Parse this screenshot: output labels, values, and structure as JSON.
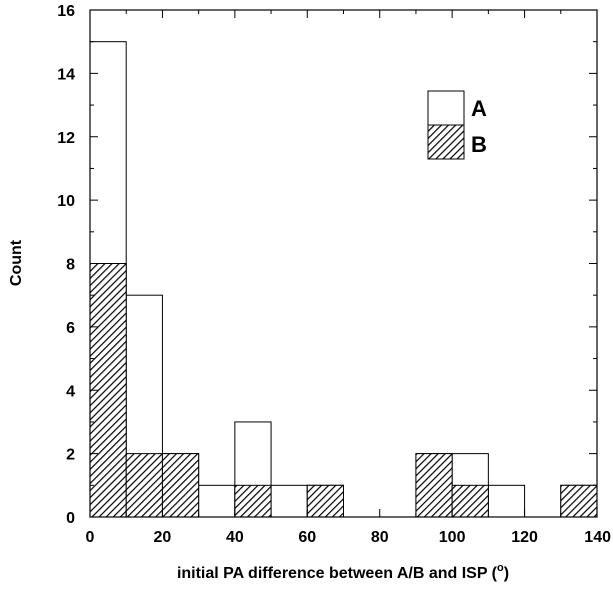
{
  "chart_data": {
    "type": "bar",
    "subtype": "histogram",
    "xlabel": "initial PA difference between A/B and ISP (",
    "xlabel_unit": "o",
    "xlabel_close": ")",
    "ylabel": "Count",
    "xlim": [
      0,
      140
    ],
    "ylim": [
      0,
      16
    ],
    "x_ticks": [
      "0",
      "20",
      "40",
      "60",
      "80",
      "100",
      "120",
      "140"
    ],
    "y_ticks": [
      "0",
      "2",
      "4",
      "6",
      "8",
      "10",
      "12",
      "14",
      "16"
    ],
    "bin_width": 10,
    "bin_starts": [
      0,
      10,
      20,
      30,
      40,
      50,
      60,
      70,
      80,
      90,
      100,
      110,
      120,
      130
    ],
    "legend_position": "top-right",
    "series": [
      {
        "name": "A",
        "fill": "open",
        "values": [
          15,
          7,
          2,
          1,
          3,
          1,
          1,
          0,
          0,
          2,
          2,
          1,
          0,
          1
        ]
      },
      {
        "name": "B",
        "fill": "hatched",
        "values": [
          8,
          2,
          2,
          0,
          1,
          0,
          1,
          0,
          0,
          2,
          1,
          0,
          0,
          1
        ]
      }
    ]
  }
}
